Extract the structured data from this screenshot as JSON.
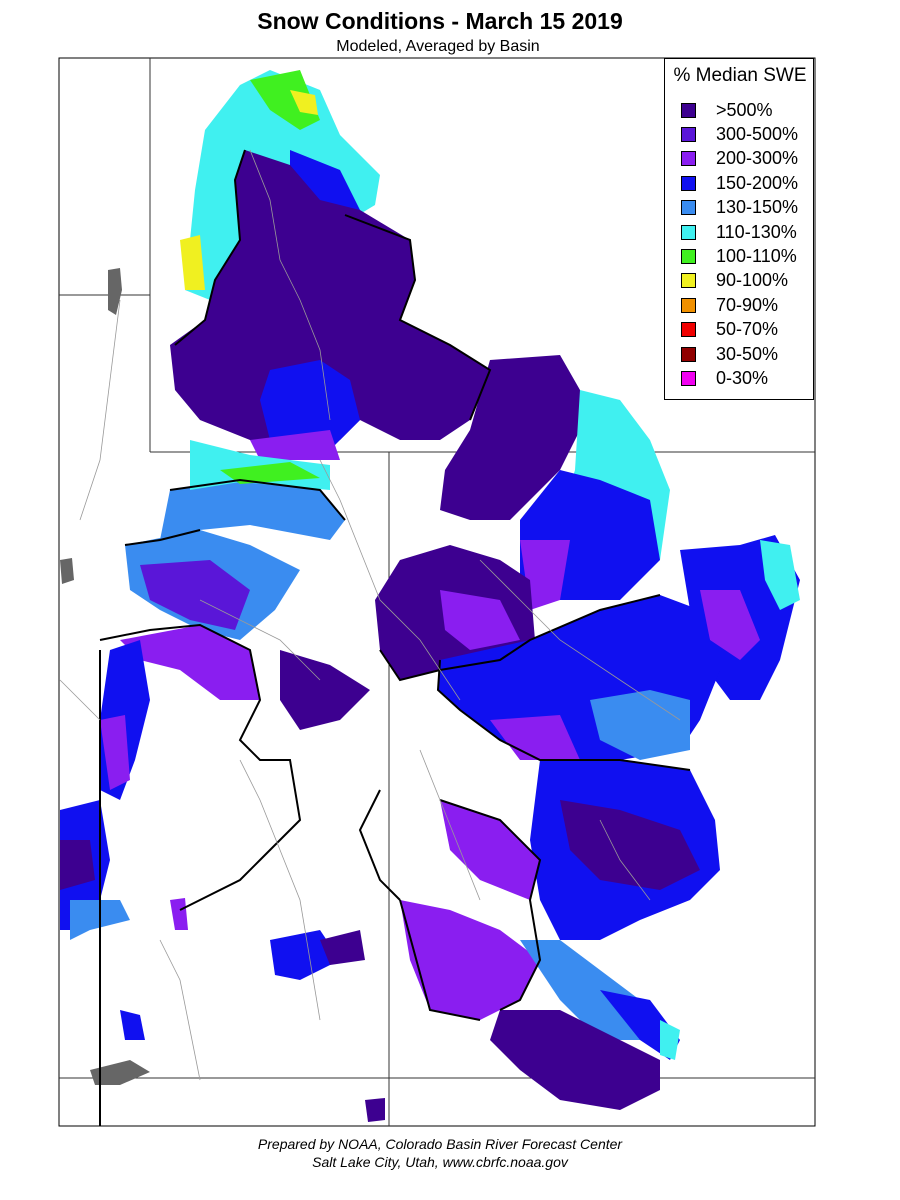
{
  "title": "Snow Conditions - March 15 2019",
  "subtitle": "Modeled, Averaged by Basin",
  "legend": {
    "title": "% Median SWE",
    "items": [
      {
        "label": ">500%",
        "color": "#3d0090"
      },
      {
        "label": "300-500%",
        "color": "#5a16d8"
      },
      {
        "label": "200-300%",
        "color": "#8a1ef0"
      },
      {
        "label": "150-200%",
        "color": "#1010f0"
      },
      {
        "label": "130-150%",
        "color": "#3a8cf0"
      },
      {
        "label": "110-130%",
        "color": "#40f0f0"
      },
      {
        "label": "100-110%",
        "color": "#40f020"
      },
      {
        "label": "90-100%",
        "color": "#f0f020"
      },
      {
        "label": "70-90%",
        "color": "#f09000"
      },
      {
        "label": "50-70%",
        "color": "#f00000"
      },
      {
        "label": "30-50%",
        "color": "#900000"
      },
      {
        "label": "0-30%",
        "color": "#f000f0"
      }
    ]
  },
  "footer": {
    "line1": "Prepared by NOAA, Colorado Basin River Forecast Center",
    "line2": "Salt Lake City, Utah, www.cbrfc.noaa.gov"
  }
}
